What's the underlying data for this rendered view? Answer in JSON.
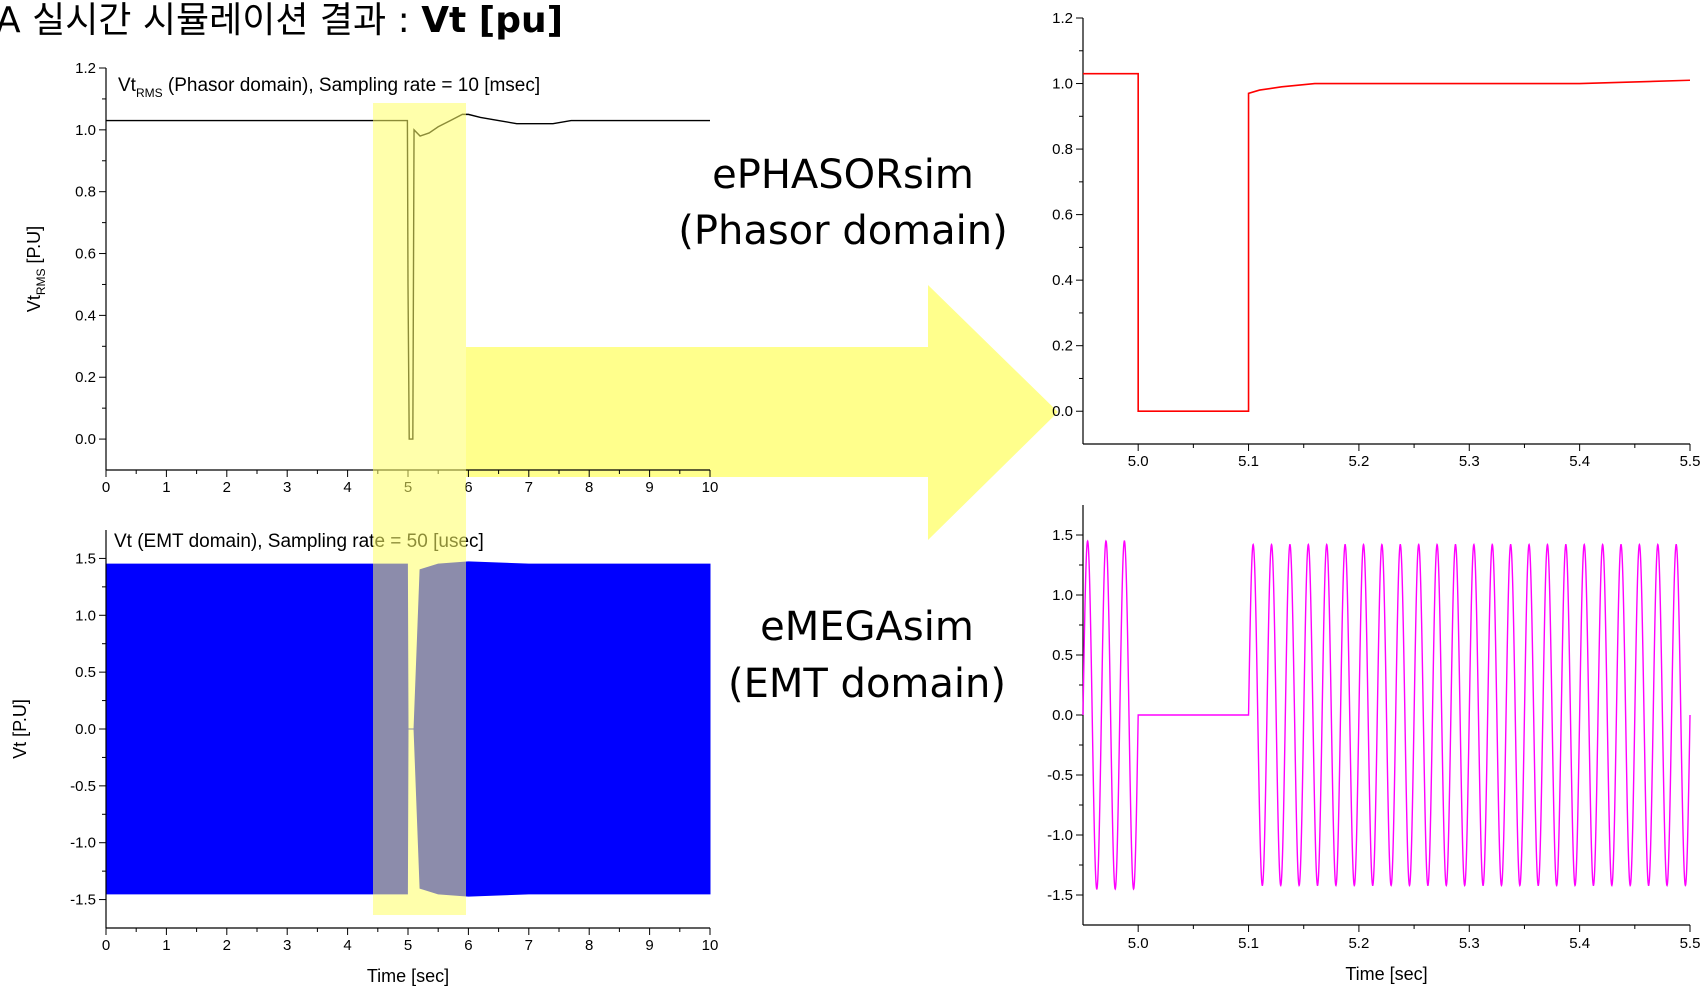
{
  "page_title": {
    "prefix": "A 실시간 시뮬레이션 결과 : ",
    "bold": "Vt [pu]"
  },
  "labels": {
    "ephasorsim_name": "ePHASORsim",
    "ephasorsim_domain": "(Phasor domain)",
    "emegasim_name": "eMEGAsim",
    "emegasim_domain": "(EMT domain)"
  },
  "colors": {
    "phasor_zoom_line": "#ff0000",
    "emt_zoom_line": "#ff00ff",
    "emt_full_fill": "#0000ff",
    "phasor_full_line": "#000000",
    "highlight": "#ffff66",
    "arrow": "#ffff80"
  },
  "chart_data": [
    {
      "id": "phasor-full",
      "type": "line",
      "title": "",
      "annotation_main": "Vt",
      "annotation_sub": "RMS",
      "annotation_rest": " (Phasor domain), Sampling rate = 10 [msec]",
      "xlabel": "",
      "ylabel_main": "Vt",
      "ylabel_sub": "RMS",
      "ylabel_rest": " [P.U]",
      "xlim": [
        0,
        10
      ],
      "ylim": [
        -0.1,
        1.2
      ],
      "xticks": [
        "0",
        "1",
        "2",
        "3",
        "4",
        "5",
        "6",
        "7",
        "8",
        "9",
        "10"
      ],
      "yticks": [
        "0.0",
        "0.2",
        "0.4",
        "0.6",
        "0.8",
        "1.0",
        "1.2"
      ],
      "series": [
        {
          "x": [
            0,
            4.99,
            5.0,
            5.02,
            5.08,
            5.1,
            5.2,
            5.35,
            5.5,
            5.7,
            5.9,
            6.0,
            6.2,
            6.5,
            6.8,
            7.1,
            7.4,
            7.7,
            8.0,
            8.5,
            9.0,
            9.5,
            10.0
          ],
          "y": [
            1.03,
            1.03,
            0.5,
            0.0,
            0.0,
            1.0,
            0.98,
            0.99,
            1.01,
            1.03,
            1.05,
            1.05,
            1.04,
            1.03,
            1.02,
            1.02,
            1.02,
            1.03,
            1.03,
            1.03,
            1.03,
            1.03,
            1.03
          ]
        }
      ]
    },
    {
      "id": "emt-full",
      "type": "area",
      "title": "",
      "annotation": "Vt (EMT domain), Sampling rate = 50 [usec]",
      "xlabel": "Time [sec]",
      "ylabel": "Vt [P.U]",
      "xlim": [
        0,
        10
      ],
      "ylim": [
        -1.75,
        1.75
      ],
      "xticks": [
        "0",
        "1",
        "2",
        "3",
        "4",
        "5",
        "6",
        "7",
        "8",
        "9",
        "10"
      ],
      "yticks": [
        "-1.5",
        "-1.0",
        "-0.5",
        "0.0",
        "0.5",
        "1.0",
        "1.5"
      ],
      "series": [
        {
          "x": [
            0,
            4.99,
            5.0,
            5.1,
            5.2,
            5.5,
            6.0,
            6.5,
            7.0,
            8.0,
            9.0,
            10.0
          ],
          "amplitude": [
            1.45,
            1.45,
            0.0,
            0.0,
            1.4,
            1.45,
            1.47,
            1.46,
            1.45,
            1.45,
            1.45,
            1.45
          ]
        }
      ]
    },
    {
      "id": "phasor-zoom",
      "type": "line",
      "title": "",
      "xlabel": "",
      "ylabel": "",
      "xlim": [
        4.95,
        5.5
      ],
      "ylim": [
        -0.1,
        1.2
      ],
      "xticks": [
        "5.0",
        "5.1",
        "5.2",
        "5.3",
        "5.4",
        "5.5"
      ],
      "yticks": [
        "0.0",
        "0.2",
        "0.4",
        "0.6",
        "0.8",
        "1.0",
        "1.2"
      ],
      "series": [
        {
          "x": [
            4.95,
            5.0,
            5.0,
            5.1,
            5.1,
            5.11,
            5.13,
            5.16,
            5.2,
            5.3,
            5.4,
            5.5
          ],
          "y": [
            1.03,
            1.03,
            0.0,
            0.0,
            0.97,
            0.98,
            0.99,
            1.0,
            1.0,
            1.0,
            1.0,
            1.01
          ]
        }
      ]
    },
    {
      "id": "emt-zoom",
      "type": "line",
      "title": "",
      "xlabel": "Time [sec]",
      "ylabel": "",
      "xlim": [
        4.95,
        5.5
      ],
      "ylim": [
        -1.75,
        1.75
      ],
      "xticks": [
        "5.0",
        "5.1",
        "5.2",
        "5.3",
        "5.4",
        "5.5"
      ],
      "yticks": [
        "-1.5",
        "-1.0",
        "-0.5",
        "0.0",
        "0.5",
        "1.0",
        "1.5"
      ],
      "frequency_hz": 60,
      "segments": [
        {
          "x_start": 4.95,
          "x_end": 5.0,
          "amplitude": 1.45,
          "offset": 0.0
        },
        {
          "x_start": 5.0,
          "x_end": 5.1,
          "amplitude": 0.0,
          "offset": 0.0
        },
        {
          "x_start": 5.1,
          "x_end": 5.5,
          "amplitude": 1.42,
          "offset": 0.0
        }
      ]
    }
  ]
}
